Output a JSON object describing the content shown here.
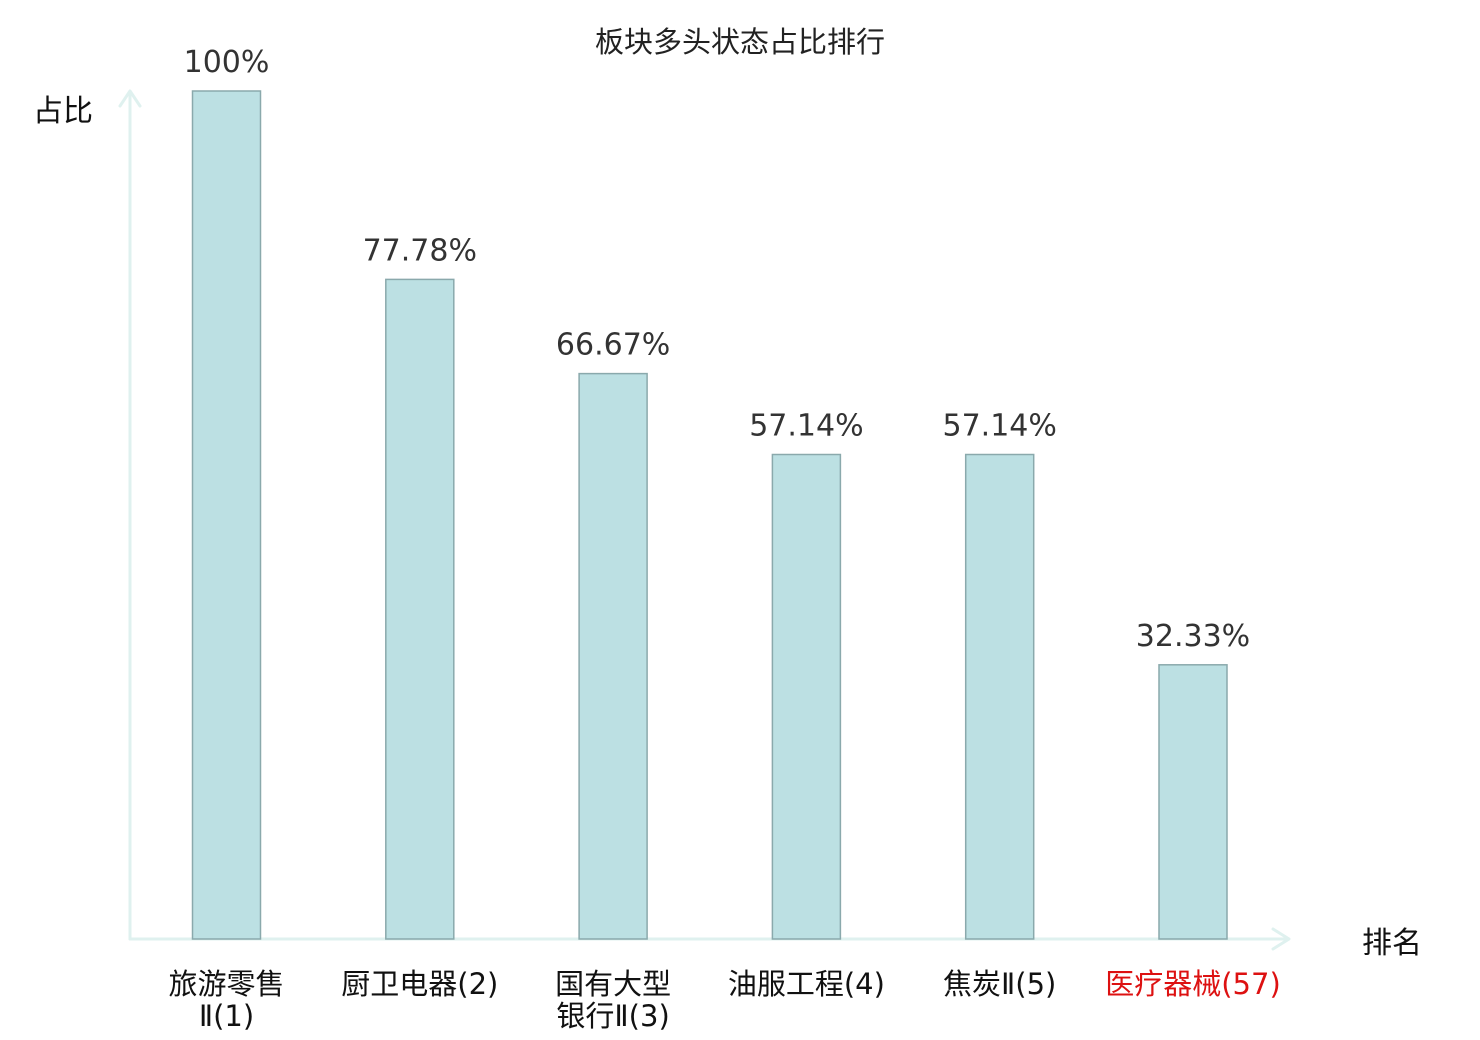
{
  "chart_data": {
    "type": "bar",
    "title": "板块多头状态占比排行",
    "ylabel": "占比",
    "xlabel": "排名",
    "ylim": [
      0,
      100
    ],
    "categories": [
      {
        "lines": [
          "旅游零售",
          "Ⅱ(1)"
        ],
        "highlight": false
      },
      {
        "lines": [
          "厨卫电器(2)"
        ],
        "highlight": false
      },
      {
        "lines": [
          "国有大型",
          "银行Ⅱ(3)"
        ],
        "highlight": false
      },
      {
        "lines": [
          "油服工程(4)"
        ],
        "highlight": false
      },
      {
        "lines": [
          "焦炭Ⅱ(5)"
        ],
        "highlight": false
      },
      {
        "lines": [
          "医疗器械(57)"
        ],
        "highlight": true
      }
    ],
    "values": [
      100,
      77.78,
      66.67,
      57.14,
      57.14,
      32.33
    ],
    "value_labels": [
      "100%",
      "77.78%",
      "66.67%",
      "57.14%",
      "57.14%",
      "32.33%"
    ],
    "grid": false,
    "legend": "none",
    "colors": {
      "bar_fill": "#bce0e3",
      "bar_stroke": "#8aa9ac",
      "axis": "#dff1ef",
      "highlight_text": "#dd1111"
    }
  }
}
